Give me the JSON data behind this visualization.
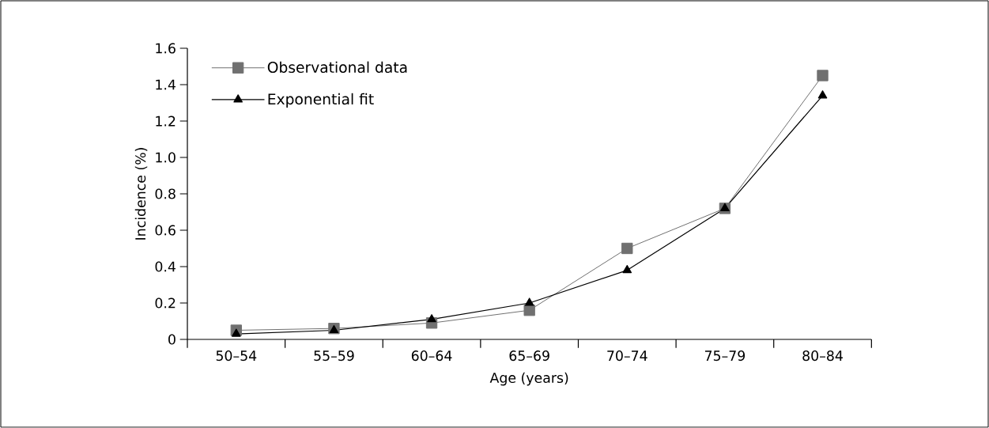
{
  "chart_data": {
    "type": "line",
    "xlabel": "Age (years)",
    "ylabel": "Incidence (%)",
    "categories": [
      "50–54",
      "55–59",
      "60–64",
      "65–69",
      "70–74",
      "75–79",
      "80–84"
    ],
    "ylim": [
      0,
      1.6
    ],
    "yticks": [
      0,
      {
        "value": 0.2,
        "label": "0.2"
      },
      {
        "value": 0.4,
        "label": "0.4"
      },
      {
        "value": 0.6,
        "label": "0.6"
      },
      {
        "value": 0.8,
        "label": "0.8"
      },
      {
        "value": 1.0,
        "label": "1.0"
      },
      {
        "value": 1.2,
        "label": "1.2"
      },
      {
        "value": 1.4,
        "label": "1.4"
      },
      {
        "value": 1.6,
        "label": "1.6"
      }
    ],
    "grid": false,
    "legend": "top left",
    "line_style": "solid",
    "series": [
      {
        "name": "Observational data",
        "color": "#707070",
        "marker": "square",
        "values": [
          0.05,
          0.06,
          0.09,
          0.16,
          0.5,
          0.72,
          1.45
        ]
      },
      {
        "name": "Exponential fit",
        "color": "#000000",
        "marker": "triangle",
        "values": [
          0.03,
          0.05,
          0.11,
          0.2,
          0.38,
          0.72,
          1.34
        ]
      }
    ]
  }
}
